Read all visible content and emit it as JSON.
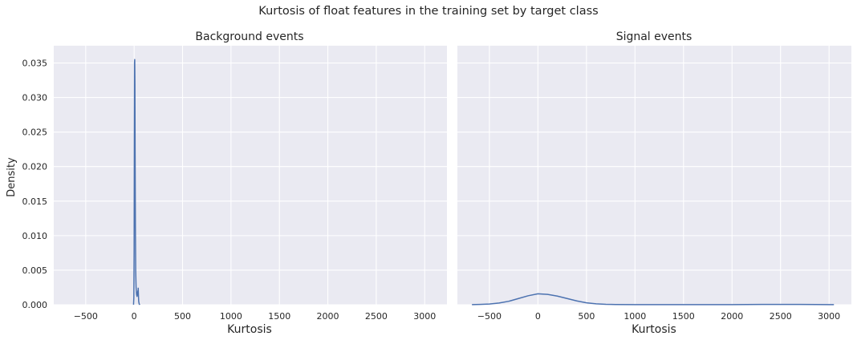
{
  "chart_data": {
    "title": "Kurtosis of float features in the training set by target class",
    "type": "line",
    "ylabel": "Density",
    "ylim": [
      0,
      0.0375
    ],
    "yticks": [
      "0.000",
      "0.005",
      "0.010",
      "0.015",
      "0.020",
      "0.025",
      "0.030",
      "0.035"
    ],
    "grid": true,
    "line_color": "#4c72b0",
    "panels": [
      {
        "title": "Background events",
        "xlabel": "Kurtosis",
        "xlim": [
          -830,
          3230
        ],
        "xticks": [
          "−500",
          "0",
          "500",
          "1000",
          "1500",
          "2000",
          "2500",
          "3000"
        ],
        "x": [
          -6,
          -3,
          0,
          2,
          4,
          6,
          8,
          10,
          13,
          16,
          20,
          25,
          30,
          38,
          40,
          42,
          44,
          47,
          52,
          60
        ],
        "y": [
          0.0,
          0.001,
          0.008,
          0.022,
          0.035,
          0.0355,
          0.032,
          0.022,
          0.011,
          0.005,
          0.0025,
          0.0015,
          0.0012,
          0.002,
          0.0015,
          0.0024,
          0.0015,
          0.0005,
          0.0001,
          0.0
        ]
      },
      {
        "title": "Signal events",
        "xlabel": "Kurtosis",
        "xlim": [
          -830,
          3230
        ],
        "xticks": [
          "−500",
          "0",
          "500",
          "1000",
          "1500",
          "2000",
          "2500",
          "3000"
        ],
        "x": [
          -680,
          -600,
          -500,
          -400,
          -300,
          -200,
          -100,
          0,
          100,
          200,
          300,
          400,
          500,
          600,
          700,
          800,
          1000,
          1500,
          2000,
          2300,
          2500,
          2700,
          3000,
          3050
        ],
        "y": [
          1e-05,
          4e-05,
          0.0001,
          0.00025,
          0.0005,
          0.0009,
          0.0013,
          0.00158,
          0.0015,
          0.00125,
          0.0009,
          0.00055,
          0.00028,
          0.00013,
          6e-05,
          3e-05,
          1e-05,
          1e-05,
          2e-05,
          4e-05,
          5e-05,
          4e-05,
          2e-05,
          1e-05
        ]
      }
    ]
  }
}
